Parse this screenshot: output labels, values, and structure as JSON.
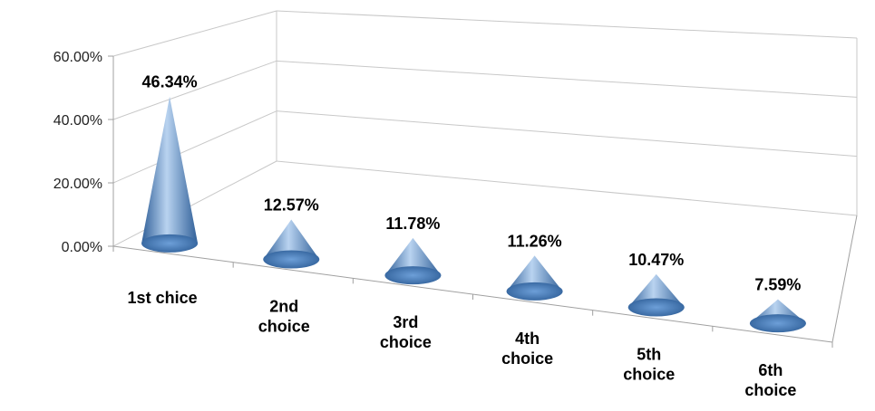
{
  "chart_data": {
    "type": "bar",
    "style": "3d-cone",
    "categories": [
      [
        "1st chice"
      ],
      [
        "2nd",
        "choice"
      ],
      [
        "3rd",
        "choice"
      ],
      [
        "4th",
        "choice"
      ],
      [
        "5th",
        "choice"
      ],
      [
        "6th",
        "choice"
      ]
    ],
    "values": [
      46.34,
      12.57,
      11.78,
      11.26,
      10.47,
      7.59
    ],
    "value_labels": [
      "46.34%",
      "12.57%",
      "11.78%",
      "11.26%",
      "10.47%",
      "7.59%"
    ],
    "y_ticks": [
      0,
      20,
      40,
      60
    ],
    "y_tick_labels": [
      "0.00%",
      "20.00%",
      "40.00%",
      "60.00%"
    ],
    "ylim": [
      0,
      60
    ],
    "grid": true,
    "legend": "none",
    "colors": {
      "cone_dark": "#2f5f98",
      "cone_mid": "#6d9fd8",
      "cone_light": "#b9d3f0",
      "gridline": "#c8c8c8",
      "axis": "#a0a0a0"
    }
  }
}
